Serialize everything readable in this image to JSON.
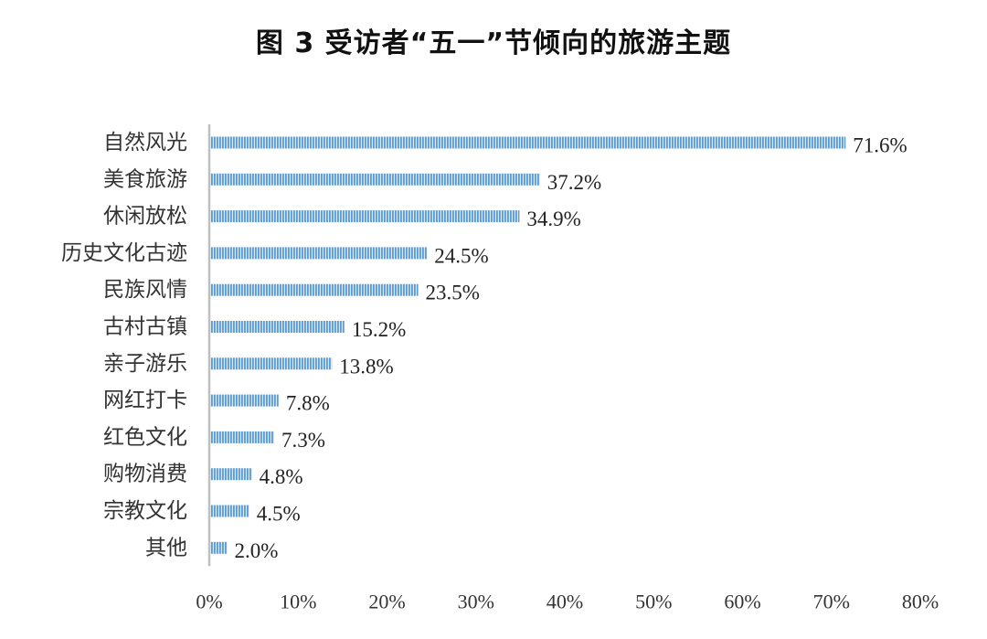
{
  "chart_data": {
    "type": "bar",
    "orientation": "horizontal",
    "title": "图 3  受访者“五一”节倾向的旅游主题",
    "categories": [
      "自然风光",
      "美食旅游",
      "休闲放松",
      "历史文化古迹",
      "民族风情",
      "古村古镇",
      "亲子游乐",
      "网红打卡",
      "红色文化",
      "购物消费",
      "宗教文化",
      "其他"
    ],
    "values": [
      71.6,
      37.2,
      34.9,
      24.5,
      23.5,
      15.2,
      13.8,
      7.8,
      7.3,
      4.8,
      4.5,
      2.0
    ],
    "value_labels": [
      "71.6%",
      "37.2%",
      "34.9%",
      "24.5%",
      "23.5%",
      "15.2%",
      "13.8%",
      "7.8%",
      "7.3%",
      "4.8%",
      "4.5%",
      "2.0%"
    ],
    "xlim": [
      0,
      80
    ],
    "xticks": [
      "0%",
      "10%",
      "20%",
      "30%",
      "40%",
      "50%",
      "60%",
      "70%",
      "80%"
    ],
    "xlabel": "",
    "ylabel": "",
    "grid": false,
    "legend": "none",
    "bar_color": "#5b9bd5",
    "bar_pattern": "vertical-stripes"
  }
}
